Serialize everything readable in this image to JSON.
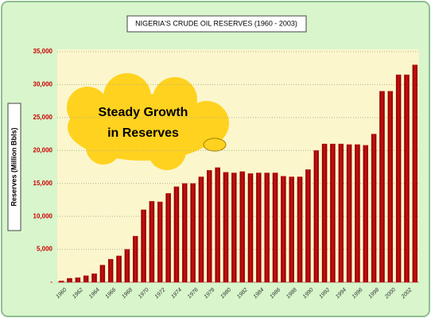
{
  "chart_data": {
    "type": "bar",
    "title": "NIGERIA'S CRUDE OIL RESERVES  (1960 - 2003)",
    "y_label": "Reserves (Million Bbls)",
    "annotation": "Steady Growth in Reserves",
    "categories": [
      "1960",
      null,
      "1962",
      null,
      "1964",
      null,
      "1966",
      null,
      "1968",
      null,
      "1970",
      null,
      "1972",
      null,
      "1974",
      null,
      "1976",
      null,
      "1978",
      null,
      "1980",
      null,
      "1982",
      null,
      "1984",
      null,
      "1986",
      null,
      "1988",
      null,
      "1990",
      null,
      "1992",
      null,
      "1994",
      null,
      "1996",
      null,
      "1998",
      null,
      "2000",
      null,
      "2002",
      null
    ],
    "values": [
      200,
      600,
      700,
      1000,
      1300,
      2600,
      3500,
      4000,
      5000,
      7000,
      11000,
      12300,
      12200,
      13500,
      14500,
      15000,
      15000,
      16000,
      17000,
      17400,
      16700,
      16600,
      16800,
      16500,
      16600,
      16600,
      16600,
      16100,
      16000,
      16000,
      17100,
      20000,
      21000,
      21000,
      21000,
      20900,
      20900,
      20800,
      22500,
      29000,
      29000,
      31500,
      31500,
      33000
    ],
    "color": "#c00000",
    "ylim": [
      0,
      35000
    ],
    "yticks": [
      {
        "value": 0,
        "label": "-"
      },
      {
        "value": 5000,
        "label": "5,000"
      },
      {
        "value": 10000,
        "label": "10,000"
      },
      {
        "value": 15000,
        "label": "15,000"
      },
      {
        "value": 20000,
        "label": "20,000"
      },
      {
        "value": 25000,
        "label": "25,000"
      },
      {
        "value": 30000,
        "label": "30,000"
      },
      {
        "value": 35000,
        "label": "35,000"
      }
    ],
    "grid": true
  }
}
